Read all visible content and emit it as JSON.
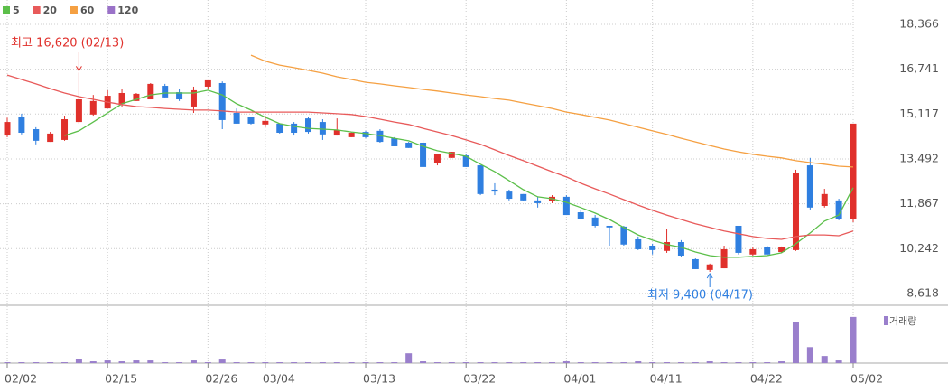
{
  "chart_data": {
    "type": "candlestick",
    "categories": [
      "02/02",
      null,
      null,
      null,
      null,
      null,
      null,
      "02/15",
      null,
      null,
      null,
      null,
      null,
      null,
      "02/26",
      null,
      null,
      null,
      "03/04",
      null,
      null,
      null,
      null,
      null,
      null,
      "03/13",
      null,
      null,
      null,
      null,
      null,
      null,
      "03/22",
      null,
      null,
      null,
      null,
      null,
      null,
      "04/01",
      null,
      null,
      null,
      null,
      null,
      "04/11",
      null,
      null,
      null,
      null,
      null,
      null,
      "04/22",
      null,
      null,
      null,
      null,
      null,
      null,
      "05/02"
    ],
    "open": [
      14340,
      15000,
      14570,
      14110,
      14180,
      14830,
      15100,
      15320,
      15490,
      15590,
      15650,
      16140,
      15910,
      15390,
      16110,
      16240,
      15160,
      15000,
      14740,
      14770,
      14770,
      14960,
      14830,
      14340,
      14280,
      14470,
      14510,
      14240,
      14080,
      14080,
      13360,
      13530,
      13620,
      13260,
      12380,
      12310,
      12220,
      11990,
      11960,
      12120,
      11560,
      11370,
      11070,
      11040,
      10580,
      10350,
      10160,
      10480,
      9860,
      9470,
      9530,
      11070,
      10030,
      10290,
      10120,
      10190,
      13260,
      11790,
      11990,
      11300
    ],
    "high": [
      14990,
      15130,
      14640,
      14470,
      15060,
      16620,
      15810,
      15980,
      16040,
      15880,
      16240,
      16210,
      16040,
      16110,
      16340,
      16300,
      15320,
      15000,
      15060,
      14770,
      14830,
      15000,
      14930,
      14960,
      14470,
      14510,
      14570,
      14280,
      14110,
      14180,
      13660,
      13750,
      13660,
      13260,
      12610,
      12380,
      12220,
      12120,
      12180,
      12180,
      11630,
      11460,
      11070,
      11070,
      10680,
      10420,
      10970,
      10550,
      9890,
      9700,
      10350,
      11070,
      10290,
      10350,
      10320,
      13100,
      13530,
      12410,
      12050,
      14770
    ],
    "low": [
      14280,
      14380,
      14020,
      14110,
      14150,
      14770,
      15060,
      15320,
      15390,
      15590,
      15650,
      15720,
      15590,
      15160,
      16040,
      14570,
      14770,
      14740,
      14640,
      14410,
      14340,
      14410,
      14180,
      14340,
      14280,
      14240,
      14080,
      13950,
      13890,
      13200,
      13260,
      13530,
      13200,
      12180,
      12180,
      11990,
      11960,
      11730,
      11890,
      11460,
      11300,
      11010,
      10350,
      10350,
      10190,
      10030,
      10090,
      9930,
      9500,
      9400,
      9530,
      10030,
      9990,
      9990,
      10090,
      10160,
      11660,
      11730,
      11270,
      11200
    ],
    "close": [
      14830,
      14440,
      14150,
      14410,
      14930,
      15650,
      15590,
      15780,
      15880,
      15850,
      16210,
      15720,
      15650,
      15980,
      16340,
      14900,
      14770,
      14770,
      14870,
      14440,
      14440,
      14470,
      14380,
      14540,
      14440,
      14280,
      14110,
      13950,
      13890,
      13200,
      13660,
      13750,
      13200,
      12220,
      12310,
      12050,
      11990,
      11890,
      12120,
      11460,
      11300,
      11070,
      11010,
      10390,
      10220,
      10190,
      10480,
      9990,
      9500,
      9670,
      10220,
      10090,
      10220,
      10030,
      10290,
      13000,
      11730,
      12220,
      11330,
      14770
    ],
    "up_color": "#e0302b",
    "down_color": "#2f7fe0",
    "ma": [
      {
        "name": "5",
        "color": "#5cbf4a",
        "values": [
          null,
          null,
          null,
          null,
          14340,
          14510,
          14830,
          15160,
          15490,
          15650,
          15810,
          15880,
          15880,
          15880,
          15980,
          15810,
          15490,
          15260,
          15000,
          14770,
          14670,
          14600,
          14570,
          14540,
          14470,
          14410,
          14340,
          14240,
          14150,
          13950,
          13790,
          13690,
          13590,
          13300,
          13030,
          12710,
          12380,
          12120,
          12050,
          11920,
          11730,
          11530,
          11300,
          11010,
          10740,
          10550,
          10390,
          10290,
          10120,
          9990,
          9930,
          9930,
          9960,
          9990,
          10090,
          10420,
          10810,
          11240,
          11460,
          12450
        ]
      },
      {
        "name": "20",
        "color": "#e85a5a",
        "values": [
          16530,
          16370,
          16210,
          16040,
          15880,
          15750,
          15650,
          15550,
          15460,
          15390,
          15360,
          15320,
          15290,
          15260,
          15260,
          15230,
          15190,
          15190,
          15190,
          15190,
          15190,
          15190,
          15160,
          15130,
          15100,
          15030,
          14930,
          14830,
          14740,
          14600,
          14470,
          14340,
          14180,
          14020,
          13820,
          13620,
          13430,
          13230,
          13030,
          12840,
          12610,
          12410,
          12220,
          12020,
          11820,
          11630,
          11460,
          11300,
          11140,
          11010,
          10880,
          10780,
          10680,
          10610,
          10580,
          10680,
          10740,
          10740,
          10710,
          10880
        ]
      },
      {
        "name": "60",
        "color": "#f5a042",
        "values": [
          null,
          null,
          null,
          null,
          null,
          null,
          null,
          null,
          null,
          null,
          null,
          null,
          null,
          null,
          null,
          null,
          null,
          17250,
          17030,
          16890,
          16800,
          16700,
          16600,
          16470,
          16370,
          16270,
          16210,
          16140,
          16080,
          16010,
          15950,
          15880,
          15810,
          15750,
          15680,
          15620,
          15520,
          15420,
          15320,
          15190,
          15100,
          15000,
          14900,
          14770,
          14640,
          14510,
          14380,
          14240,
          14110,
          13980,
          13850,
          13750,
          13660,
          13590,
          13530,
          13430,
          13360,
          13300,
          13230,
          13200
        ]
      },
      {
        "name": "120",
        "color": "#9a72c8",
        "values": [
          null,
          null,
          null,
          null,
          null,
          null,
          null,
          null,
          null,
          null,
          null,
          null,
          null,
          null,
          null,
          null,
          null,
          null,
          null,
          null,
          null,
          null,
          null,
          null,
          null,
          null,
          null,
          null,
          null,
          null,
          null,
          null,
          null,
          null,
          null,
          null,
          null,
          null,
          null,
          null,
          null,
          null,
          null,
          null,
          null,
          null,
          null,
          null,
          null,
          null,
          null,
          null,
          null,
          null,
          null,
          null,
          null,
          null,
          null,
          null
        ]
      }
    ],
    "volume": {
      "name": "거래량",
      "color": "#9a7fcc",
      "ylim": [
        0,
        60
      ],
      "values": [
        1,
        1,
        1,
        1,
        1,
        5,
        2,
        3,
        2,
        3,
        3,
        1,
        1,
        3,
        1,
        4,
        1,
        1,
        1,
        1,
        1,
        1,
        1,
        1,
        1,
        1,
        1,
        1,
        11,
        2,
        1,
        1,
        1,
        1,
        1,
        1,
        1,
        1,
        1,
        2,
        1,
        1,
        1,
        1,
        2,
        1,
        1,
        1,
        1,
        2,
        1,
        1,
        1,
        1,
        2,
        46,
        18,
        8,
        3,
        52
      ]
    },
    "ylim": [
      8190,
      19250
    ],
    "yticks": [
      {
        "value": 18366,
        "label": "18,366"
      },
      {
        "value": 16741,
        "label": "16,741"
      },
      {
        "value": 15117,
        "label": "15,117"
      },
      {
        "value": 13492,
        "label": "13,492"
      },
      {
        "value": 11867,
        "label": "11,867"
      },
      {
        "value": 10242,
        "label": "10,242"
      },
      {
        "value": 8618,
        "label": "8,618"
      }
    ],
    "grid": true,
    "annotations": [
      {
        "text": "최고 16,620 (02/13)",
        "color": "#e0302b"
      },
      {
        "text": "최저 9,400 (04/17)",
        "color": "#2f7fe0"
      }
    ]
  }
}
